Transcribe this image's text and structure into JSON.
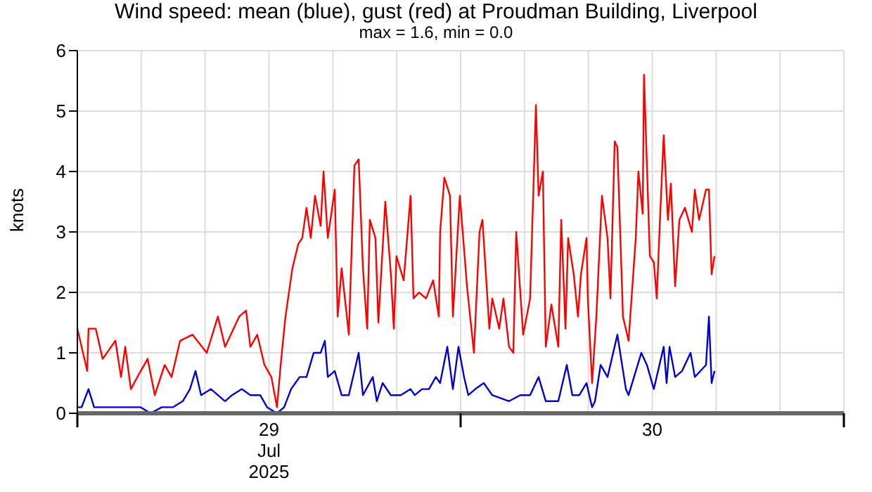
{
  "chart_data": {
    "type": "line",
    "title": "Wind speed: mean (blue), gust (red) at Proudman Building, Liverpool",
    "subtitle": "max = 1.6, min = 0.0",
    "ylabel": "knots",
    "xlim": [
      "2025-07-29T00:00",
      "2025-07-31T00:00"
    ],
    "xticks": [
      {
        "value": "2025-07-29T00:00",
        "label": null
      },
      {
        "value": "2025-07-29T12:00",
        "label": "29 Jul 2025"
      },
      {
        "value": "2025-07-30T00:00",
        "label": null
      },
      {
        "value": "2025-07-30T12:00",
        "label": "30"
      },
      {
        "value": "2025-07-31T00:00",
        "label": null
      }
    ],
    "ylim": [
      0,
      6
    ],
    "yticks": [
      0,
      1,
      2,
      3,
      4,
      5,
      6
    ],
    "grid": true,
    "marker": "none",
    "line_style": "solid",
    "series": [
      {
        "color": "#ff0000",
        "x": [
          "2025-07-29T00:00",
          "2025-07-29T00:16",
          "2025-07-29T00:37",
          "2025-07-29T00:42",
          "2025-07-29T01:09",
          "2025-07-29T01:35",
          "2025-07-29T02:23",
          "2025-07-29T02:44",
          "2025-07-29T03:00",
          "2025-07-29T03:21",
          "2025-07-29T03:58",
          "2025-07-29T04:24",
          "2025-07-29T04:51",
          "2025-07-29T05:28",
          "2025-07-29T05:54",
          "2025-07-29T06:26",
          "2025-07-29T07:13",
          "2025-07-29T08:06",
          "2025-07-29T08:48",
          "2025-07-29T09:15",
          "2025-07-29T10:08",
          "2025-07-29T10:34",
          "2025-07-29T10:50",
          "2025-07-29T11:16",
          "2025-07-29T11:43",
          "2025-07-29T12:09",
          "2025-07-29T12:30",
          "2025-07-29T12:46",
          "2025-07-29T13:02",
          "2025-07-29T13:28",
          "2025-07-29T13:50",
          "2025-07-29T14:05",
          "2025-07-29T14:21",
          "2025-07-29T14:37",
          "2025-07-29T14:53",
          "2025-07-29T15:14",
          "2025-07-29T15:25",
          "2025-07-29T15:41",
          "2025-07-29T16:07",
          "2025-07-29T16:18",
          "2025-07-29T16:33",
          "2025-07-29T17:00",
          "2025-07-29T17:21",
          "2025-07-29T17:37",
          "2025-07-29T17:53",
          "2025-07-29T18:09",
          "2025-07-29T18:19",
          "2025-07-29T18:40",
          "2025-07-29T18:51",
          "2025-07-29T19:17",
          "2025-07-29T19:38",
          "2025-07-29T19:49",
          "2025-07-29T19:59",
          "2025-07-29T20:26",
          "2025-07-29T20:52",
          "2025-07-29T21:03",
          "2025-07-29T21:24",
          "2025-07-29T21:50",
          "2025-07-29T22:17",
          "2025-07-29T22:38",
          "2025-07-29T22:43",
          "2025-07-29T22:59",
          "2025-07-29T23:20",
          "2025-07-29T23:31",
          "2025-07-29T23:57",
          "2025-07-30T00:24",
          "2025-07-30T00:50",
          "2025-07-30T01:11",
          "2025-07-30T01:22",
          "2025-07-30T01:48",
          "2025-07-30T01:59",
          "2025-07-30T02:25",
          "2025-07-30T02:41",
          "2025-07-30T03:02",
          "2025-07-30T03:18",
          "2025-07-30T03:29",
          "2025-07-30T03:55",
          "2025-07-30T04:21",
          "2025-07-30T04:43",
          "2025-07-30T04:53",
          "2025-07-30T05:09",
          "2025-07-30T05:20",
          "2025-07-30T05:41",
          "2025-07-30T06:07",
          "2025-07-30T06:18",
          "2025-07-30T06:34",
          "2025-07-30T06:44",
          "2025-07-30T07:05",
          "2025-07-30T07:21",
          "2025-07-30T07:32",
          "2025-07-30T07:53",
          "2025-07-30T07:58",
          "2025-07-30T08:14",
          "2025-07-30T08:30",
          "2025-07-30T08:51",
          "2025-07-30T09:12",
          "2025-07-30T09:23",
          "2025-07-30T09:39",
          "2025-07-30T09:49",
          "2025-07-30T10:10",
          "2025-07-30T10:31",
          "2025-07-30T10:58",
          "2025-07-30T11:08",
          "2025-07-30T11:24",
          "2025-07-30T11:29",
          "2025-07-30T11:51",
          "2025-07-30T12:06",
          "2025-07-30T12:17",
          "2025-07-30T12:28",
          "2025-07-30T12:43",
          "2025-07-30T12:59",
          "2025-07-30T13:10",
          "2025-07-30T13:26",
          "2025-07-30T13:42",
          "2025-07-30T14:03",
          "2025-07-30T14:29",
          "2025-07-30T14:40",
          "2025-07-30T14:56",
          "2025-07-30T15:22",
          "2025-07-30T15:33",
          "2025-07-30T15:43",
          "2025-07-30T15:54"
        ],
        "values": [
          1.4,
          1.1,
          0.7,
          1.4,
          1.4,
          0.9,
          1.2,
          0.6,
          1.1,
          0.4,
          0.7,
          0.9,
          0.3,
          0.8,
          0.6,
          1.2,
          1.3,
          1.0,
          1.6,
          1.1,
          1.6,
          1.7,
          1.1,
          1.3,
          0.8,
          0.6,
          0.1,
          0.9,
          1.6,
          2.4,
          2.8,
          2.9,
          3.4,
          2.9,
          3.6,
          3.1,
          4.0,
          2.9,
          3.7,
          1.6,
          2.4,
          1.3,
          4.1,
          4.2,
          2.4,
          1.4,
          3.2,
          2.9,
          1.5,
          3.5,
          2.3,
          1.4,
          2.6,
          2.2,
          3.6,
          1.9,
          2.0,
          1.9,
          2.2,
          1.6,
          3.0,
          3.9,
          3.6,
          1.6,
          3.6,
          2.1,
          1.0,
          3.0,
          3.2,
          1.4,
          1.9,
          1.4,
          1.9,
          1.1,
          1.0,
          3.0,
          1.3,
          1.9,
          5.1,
          3.6,
          4.0,
          1.1,
          1.8,
          1.1,
          3.2,
          1.4,
          2.9,
          2.3,
          1.6,
          2.3,
          2.9,
          1.9,
          0.5,
          1.6,
          3.6,
          2.9,
          1.9,
          4.5,
          4.4,
          1.6,
          1.2,
          2.9,
          4.0,
          3.3,
          5.6,
          2.6,
          2.5,
          1.9,
          3.1,
          4.6,
          3.2,
          3.8,
          2.1,
          3.2,
          3.4,
          3.0,
          3.7,
          3.2,
          3.7,
          3.7,
          2.3,
          2.6
        ]
      },
      {
        "color": "#0000cc",
        "x": [
          "2025-07-29T00:00",
          "2025-07-29T00:16",
          "2025-07-29T00:42",
          "2025-07-29T01:03",
          "2025-07-29T01:35",
          "2025-07-29T02:12",
          "2025-07-29T03:05",
          "2025-07-29T03:58",
          "2025-07-29T04:35",
          "2025-07-29T05:17",
          "2025-07-29T05:59",
          "2025-07-29T06:36",
          "2025-07-29T07:03",
          "2025-07-29T07:24",
          "2025-07-29T07:45",
          "2025-07-29T08:22",
          "2025-07-29T08:48",
          "2025-07-29T09:15",
          "2025-07-29T09:41",
          "2025-07-29T10:18",
          "2025-07-29T10:50",
          "2025-07-29T11:27",
          "2025-07-29T11:53",
          "2025-07-29T12:30",
          "2025-07-29T12:57",
          "2025-07-29T13:23",
          "2025-07-29T13:39",
          "2025-07-29T13:55",
          "2025-07-29T14:21",
          "2025-07-29T14:48",
          "2025-07-29T15:14",
          "2025-07-29T15:30",
          "2025-07-29T15:41",
          "2025-07-29T16:07",
          "2025-07-29T16:33",
          "2025-07-29T17:00",
          "2025-07-29T17:37",
          "2025-07-29T17:53",
          "2025-07-29T18:30",
          "2025-07-29T18:45",
          "2025-07-29T19:07",
          "2025-07-29T19:38",
          "2025-07-29T20:15",
          "2025-07-29T20:52",
          "2025-07-29T21:08",
          "2025-07-29T21:35",
          "2025-07-29T22:01",
          "2025-07-29T22:27",
          "2025-07-29T22:43",
          "2025-07-29T23:10",
          "2025-07-29T23:31",
          "2025-07-29T23:52",
          "2025-07-30T00:13",
          "2025-07-30T00:29",
          "2025-07-30T00:55",
          "2025-07-30T01:27",
          "2025-07-30T01:59",
          "2025-07-30T03:02",
          "2025-07-30T03:44",
          "2025-07-30T04:21",
          "2025-07-30T04:53",
          "2025-07-30T05:20",
          "2025-07-30T06:07",
          "2025-07-30T06:39",
          "2025-07-30T07:00",
          "2025-07-30T07:26",
          "2025-07-30T07:53",
          "2025-07-30T08:14",
          "2025-07-30T08:25",
          "2025-07-30T08:46",
          "2025-07-30T09:12",
          "2025-07-30T09:49",
          "2025-07-30T10:21",
          "2025-07-30T10:31",
          "2025-07-30T11:19",
          "2025-07-30T11:40",
          "2025-07-30T12:06",
          "2025-07-30T12:43",
          "2025-07-30T12:54",
          "2025-07-30T13:05",
          "2025-07-30T13:26",
          "2025-07-30T13:52",
          "2025-07-30T14:24",
          "2025-07-30T14:40",
          "2025-07-30T15:01",
          "2025-07-30T15:22",
          "2025-07-30T15:33",
          "2025-07-30T15:43",
          "2025-07-30T15:54"
        ],
        "values": [
          0.1,
          0.1,
          0.4,
          0.1,
          0.1,
          0.1,
          0.1,
          0.1,
          0.0,
          0.1,
          0.1,
          0.2,
          0.4,
          0.7,
          0.3,
          0.4,
          0.3,
          0.2,
          0.3,
          0.4,
          0.3,
          0.3,
          0.1,
          0.0,
          0.1,
          0.4,
          0.5,
          0.6,
          0.6,
          1.0,
          1.0,
          1.2,
          0.6,
          0.7,
          0.3,
          0.3,
          1.0,
          0.3,
          0.6,
          0.2,
          0.5,
          0.3,
          0.3,
          0.4,
          0.3,
          0.4,
          0.4,
          0.6,
          0.5,
          1.1,
          0.4,
          1.1,
          0.6,
          0.3,
          0.4,
          0.5,
          0.3,
          0.2,
          0.3,
          0.3,
          0.6,
          0.2,
          0.2,
          0.8,
          0.3,
          0.3,
          0.5,
          0.1,
          0.2,
          0.8,
          0.6,
          1.3,
          0.4,
          0.3,
          1.0,
          0.8,
          0.4,
          1.1,
          0.5,
          1.1,
          0.6,
          0.7,
          1.0,
          0.6,
          0.7,
          0.8,
          1.6,
          0.5,
          0.7
        ]
      }
    ]
  }
}
